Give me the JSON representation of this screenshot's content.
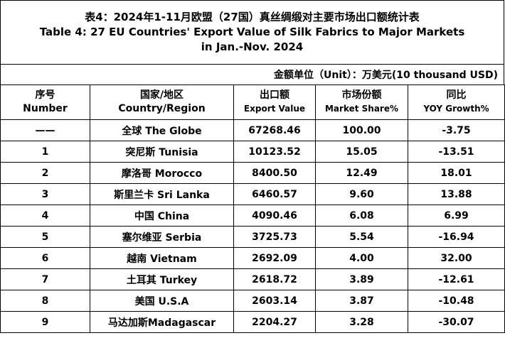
{
  "title": {
    "line1": "表4：2024年1-11月欧盟（27国）真丝绸缎对主要市场出口额统计表",
    "line2": "Table 4: 27 EU Countries' Export Value of Silk Fabrics to Major Markets",
    "line3": "in Jan.-Nov. 2024"
  },
  "unit_note": "金额单位（Unit）：万美元(10 thousand USD)",
  "headers": [
    {
      "main": "序号",
      "sub": "Number"
    },
    {
      "main": "国家/地区",
      "sub": "Country/Region"
    },
    {
      "main": "出口额",
      "sub": "Export Value"
    },
    {
      "main": "市场份额",
      "sub": "Market Share%"
    },
    {
      "main": "同比",
      "sub": "YOY Growth%"
    }
  ],
  "rows": [
    {
      "no": "——",
      "country": "全球 The Globe",
      "export": "67268.46",
      "share": "100.00",
      "yoy": "-3.75"
    },
    {
      "no": "1",
      "country": "突尼斯 Tunisia",
      "export": "10123.52",
      "share": "15.05",
      "yoy": "-13.51"
    },
    {
      "no": "2",
      "country": "摩洛哥 Morocco",
      "export": "8400.50",
      "share": "12.49",
      "yoy": "18.01"
    },
    {
      "no": "3",
      "country": "斯里兰卡 Sri Lanka",
      "export": "6460.57",
      "share": "9.60",
      "yoy": "13.88"
    },
    {
      "no": "4",
      "country": "中国 China",
      "export": "4090.46",
      "share": "6.08",
      "yoy": "6.99"
    },
    {
      "no": "5",
      "country": "塞尔维亚 Serbia",
      "export": "3725.73",
      "share": "5.54",
      "yoy": "-16.94"
    },
    {
      "no": "6",
      "country": "越南 Vietnam",
      "export": "2692.09",
      "share": "4.00",
      "yoy": "32.00"
    },
    {
      "no": "7",
      "country": "土耳其 Turkey",
      "export": "2618.72",
      "share": "3.89",
      "yoy": "-12.61"
    },
    {
      "no": "8",
      "country": "美国 U.S.A",
      "export": "2603.14",
      "share": "3.87",
      "yoy": "-10.48"
    },
    {
      "no": "9",
      "country": "马达加斯Madagascar",
      "export": "2204.27",
      "share": "3.28",
      "yoy": "-30.07"
    }
  ]
}
